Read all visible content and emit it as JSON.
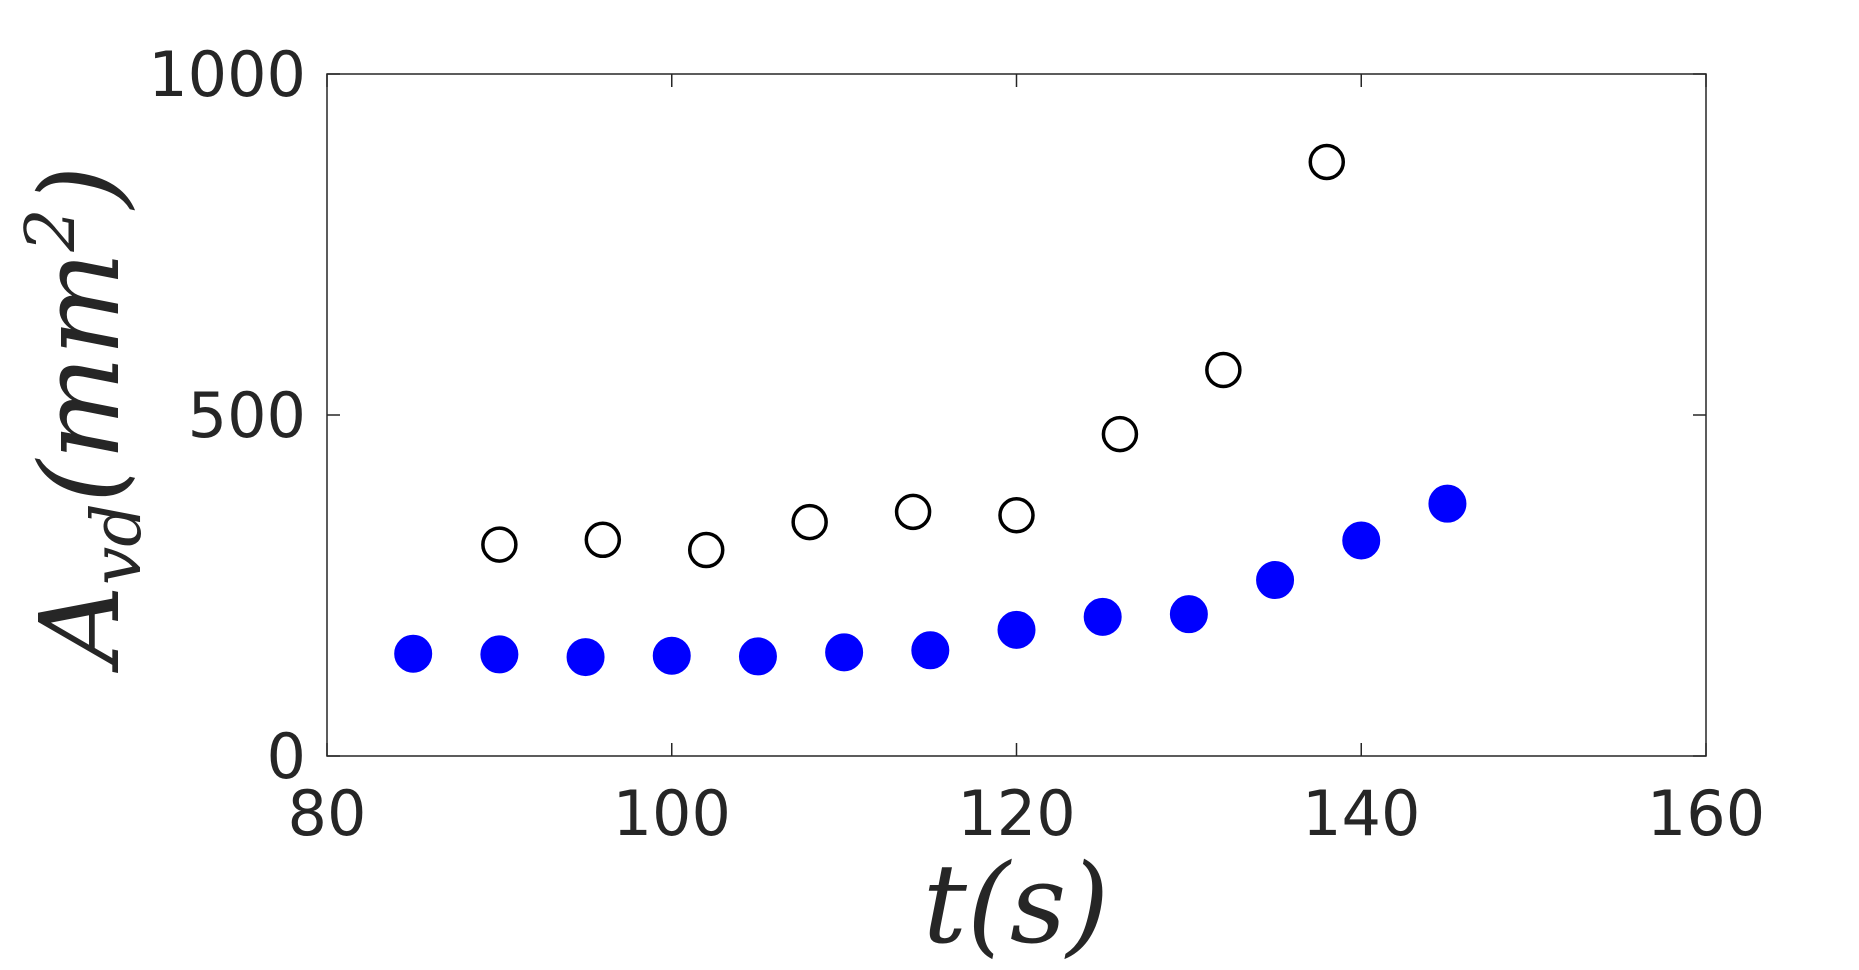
{
  "chart_data": {
    "type": "scatter",
    "xlabel": "t(s)",
    "ylabel": "A_vd(mm^2)",
    "ylabel_parts": {
      "base": "A",
      "subscript": "vd",
      "unit_open": "(mm",
      "superscript": "2",
      "unit_close": ")"
    },
    "xlim": [
      80,
      160
    ],
    "ylim": [
      0,
      1000
    ],
    "x_ticks": [
      80,
      100,
      120,
      140,
      160
    ],
    "y_ticks": [
      0,
      500,
      1000
    ],
    "x_tick_labels": [
      "80",
      "100",
      "120",
      "140",
      "160"
    ],
    "y_tick_labels": [
      "0",
      "500",
      "1000"
    ],
    "grid": false,
    "series": [
      {
        "marker": "open-circle",
        "color": "#000000",
        "x": [
          90,
          96,
          102,
          108,
          114,
          120,
          126,
          132,
          138
        ],
        "y": [
          310,
          317,
          302,
          343,
          358,
          353,
          472,
          566,
          871
        ]
      },
      {
        "marker": "filled-circle",
        "color": "#0000ff",
        "x": [
          85,
          90,
          95,
          100,
          105,
          110,
          115,
          120,
          125,
          130,
          135,
          140,
          145
        ],
        "y": [
          150,
          149,
          145,
          147,
          146,
          152,
          155,
          185,
          204,
          208,
          258,
          316,
          370
        ]
      }
    ]
  }
}
